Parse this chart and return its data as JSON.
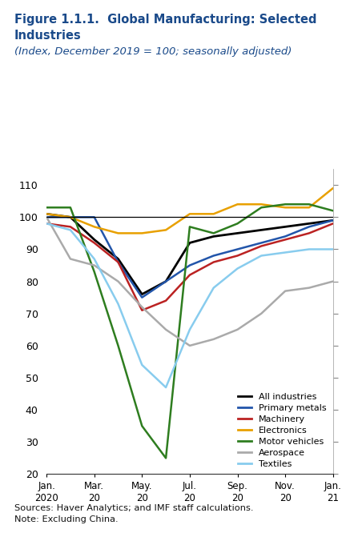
{
  "title_line1": "Figure 1.1.1.  Global Manufacturing: Selected",
  "title_line2": "Industries",
  "subtitle": "(Index, December 2019 = 100; seasonally adjusted)",
  "source": "Sources: Haver Analytics; and IMF staff calculations.",
  "note": "Note: Excluding China.",
  "ylim": [
    20,
    115
  ],
  "yticks": [
    20,
    30,
    40,
    50,
    60,
    70,
    80,
    90,
    100,
    110
  ],
  "series": {
    "All industries": {
      "color": "#000000",
      "lw": 2.0,
      "data": [
        101,
        100,
        93,
        87,
        76,
        80,
        92,
        94,
        95,
        96,
        97,
        98,
        99
      ]
    },
    "Primary metals": {
      "color": "#2255AA",
      "lw": 1.8,
      "data": [
        100,
        100,
        100,
        86,
        75,
        80,
        85,
        88,
        90,
        92,
        94,
        97,
        99
      ]
    },
    "Machinery": {
      "color": "#BB2222",
      "lw": 1.8,
      "data": [
        98,
        97,
        92,
        86,
        71,
        74,
        82,
        86,
        88,
        91,
        93,
        95,
        98
      ]
    },
    "Electronics": {
      "color": "#E8A000",
      "lw": 1.8,
      "data": [
        101,
        100,
        97,
        95,
        95,
        96,
        101,
        101,
        104,
        104,
        103,
        103,
        109
      ]
    },
    "Motor vehicles": {
      "color": "#2E7D1F",
      "lw": 1.8,
      "data": [
        103,
        103,
        83,
        60,
        35,
        25,
        97,
        95,
        98,
        103,
        104,
        104,
        102
      ]
    },
    "Aerospace": {
      "color": "#AAAAAA",
      "lw": 1.8,
      "data": [
        100,
        87,
        85,
        80,
        72,
        65,
        60,
        62,
        65,
        70,
        77,
        78,
        80
      ]
    },
    "Textiles": {
      "color": "#88CCEE",
      "lw": 1.8,
      "data": [
        98,
        96,
        87,
        73,
        54,
        47,
        65,
        78,
        84,
        88,
        89,
        90,
        90
      ]
    }
  },
  "background_color": "#FFFFFF",
  "title_color": "#1A4A8A",
  "subtitle_color": "#1A4A8A",
  "ref_line": 100,
  "series_order": [
    "All industries",
    "Primary metals",
    "Machinery",
    "Electronics",
    "Motor vehicles",
    "Aerospace",
    "Textiles"
  ]
}
